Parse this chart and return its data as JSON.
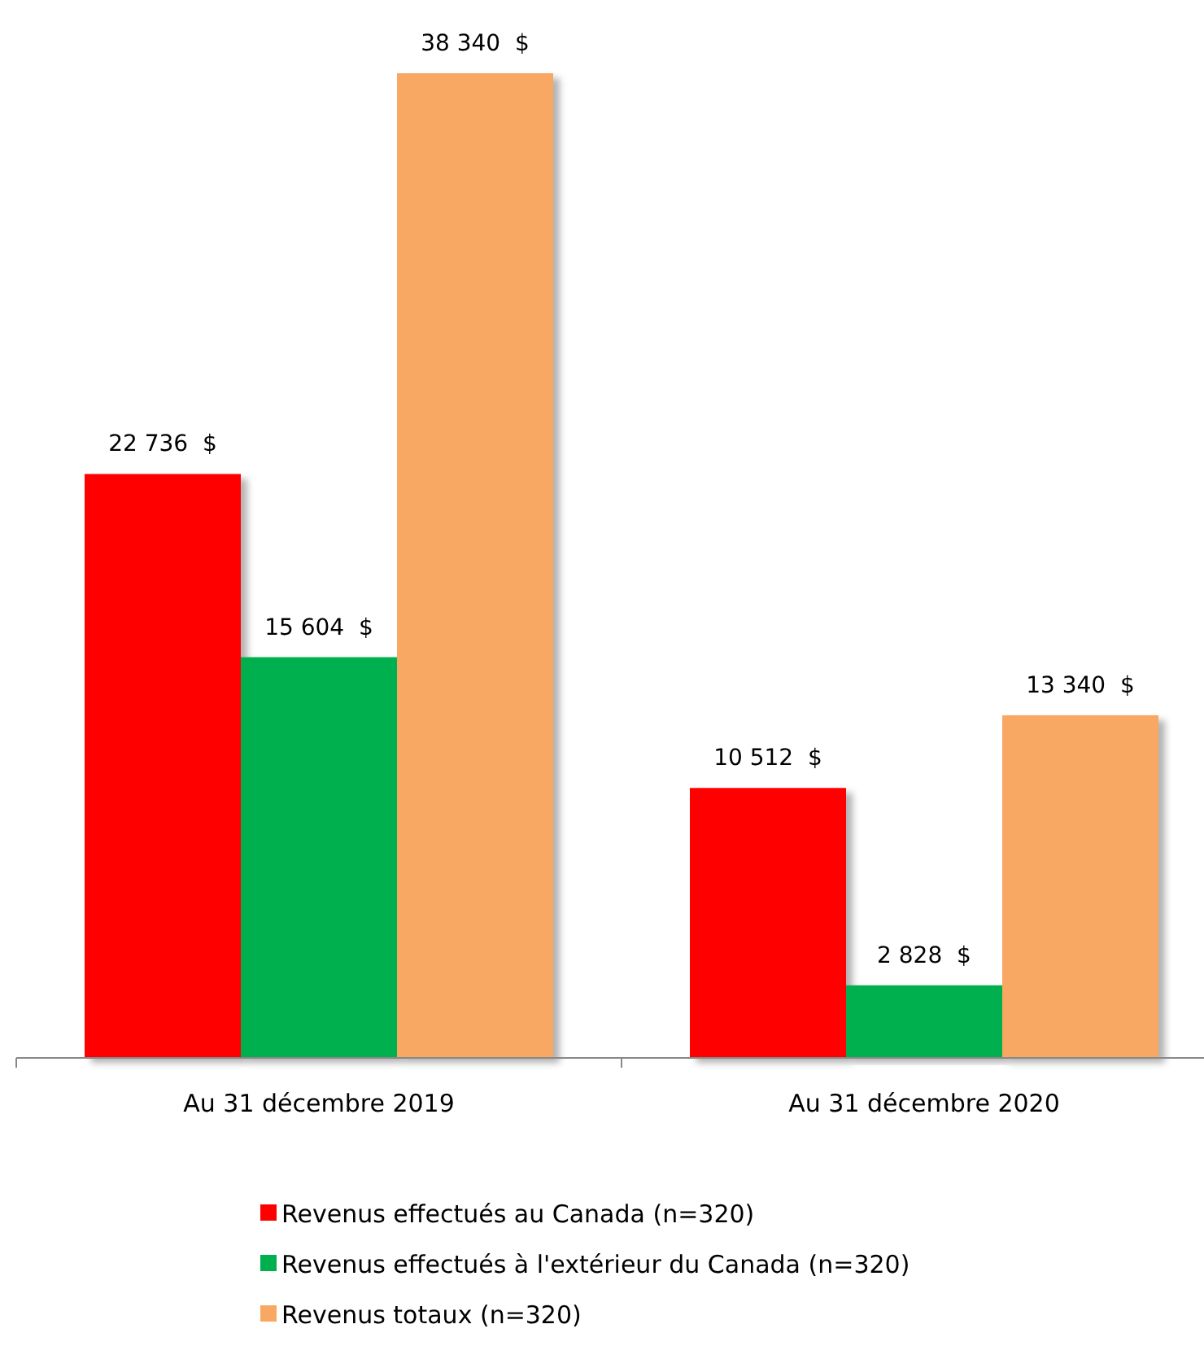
{
  "chart_data": {
    "type": "bar",
    "categories": [
      "Au 31 décembre 2019",
      "Au 31 décembre 2020"
    ],
    "series": [
      {
        "name": "Revenus effectués au Canada (n=320)",
        "color": "#ff0000",
        "values": [
          22736,
          10512
        ],
        "value_labels": [
          "22 736  $",
          "10 512  $"
        ]
      },
      {
        "name": "Revenus effectués à l'extérieur du Canada (n=320)",
        "color": "#00b050",
        "values": [
          15604,
          2828
        ],
        "value_labels": [
          "15 604  $",
          "2 828  $"
        ]
      },
      {
        "name": "Revenus totaux (n=320)",
        "color": "#f8a862",
        "values": [
          38340,
          13340
        ],
        "value_labels": [
          "38 340  $",
          "13 340  $"
        ]
      }
    ],
    "relative": false,
    "legend": "bottom",
    "grid": false
  }
}
